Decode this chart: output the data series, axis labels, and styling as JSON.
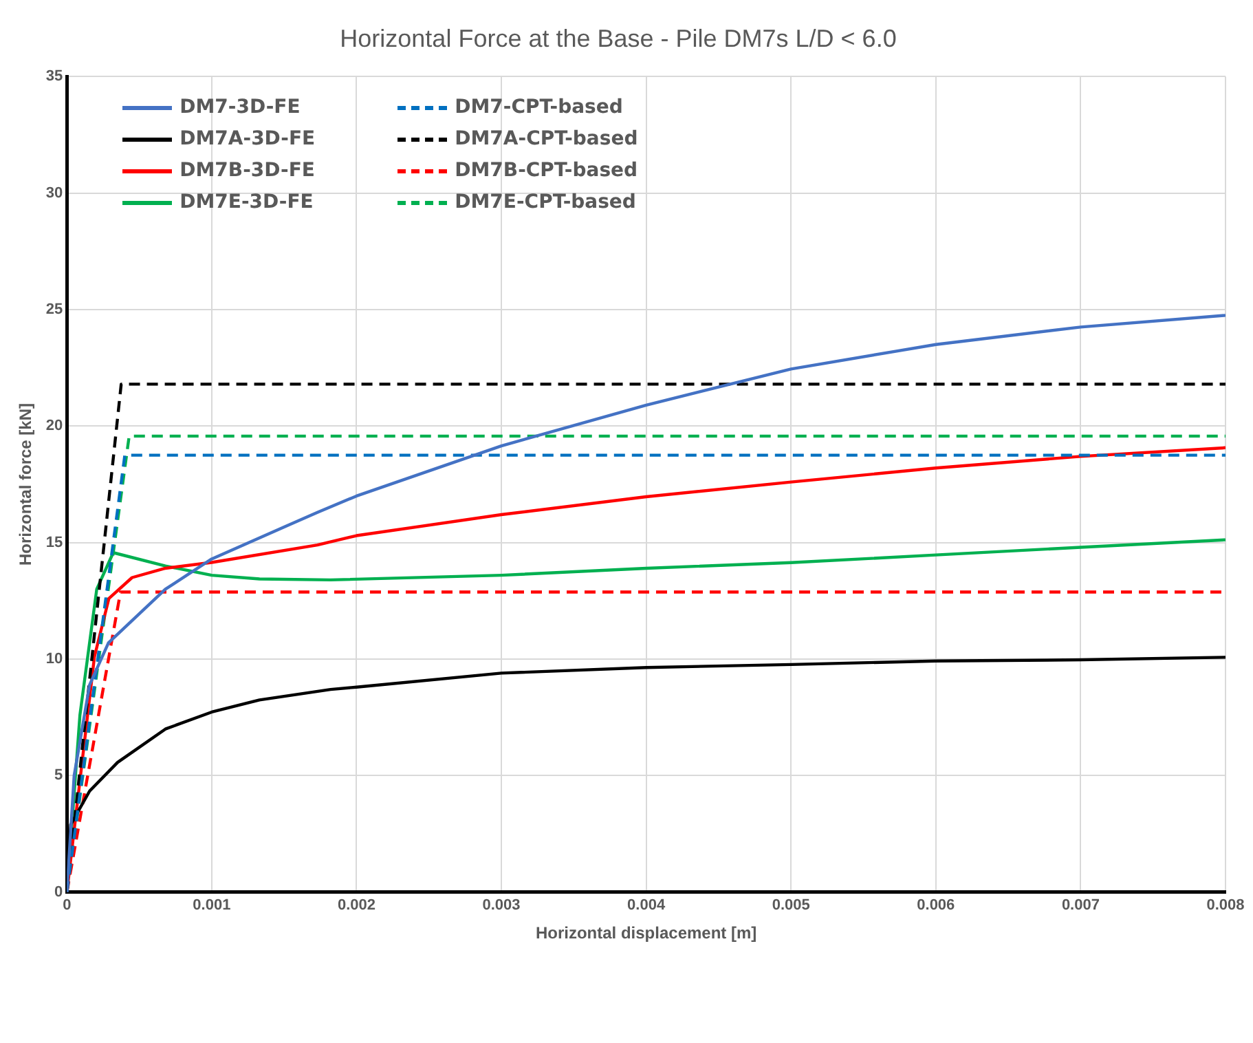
{
  "chart_data": {
    "type": "line",
    "title": "Horizontal Force at the Base - Pile DM7s L/D < 6.0",
    "xlabel": "Horizontal displacement [m]",
    "ylabel": "Horizontal force [kN]",
    "xlim": [
      0,
      0.008
    ],
    "xticks": [
      0,
      0.001,
      0.002,
      0.003,
      0.004,
      0.005,
      0.006,
      0.007,
      0.008
    ],
    "ylim": [
      0,
      35
    ],
    "yticks": [
      0,
      5,
      10,
      15,
      20,
      25,
      30,
      35
    ],
    "grid": true,
    "legend": "top left",
    "marker": "none",
    "series": [
      {
        "name": "DM7-3D-FE",
        "color": "#4472c4",
        "line_style": "solid",
        "x": [
          0,
          5e-05,
          0.000157,
          0.000287,
          0.00068,
          0.001,
          0.00173,
          0.002,
          0.003,
          0.004,
          0.005,
          0.006,
          0.007,
          0.008
        ],
        "values": [
          0,
          5,
          8.9,
          10.7,
          13.0,
          14.3,
          16.3,
          17.0,
          19.15,
          20.9,
          22.45,
          23.5,
          24.25,
          24.75
        ]
      },
      {
        "name": "DM7-CPT-based",
        "color": "#0070c0",
        "line_style": "dashed",
        "x": [
          0,
          0.0004,
          0.008
        ],
        "values": [
          0,
          18.75,
          18.75
        ]
      },
      {
        "name": "DM7A-3D-FE",
        "color": "#000000",
        "line_style": "solid",
        "x": [
          0,
          2.6e-05,
          0.000157,
          0.00035,
          0.00068,
          0.001,
          0.00133,
          0.00182,
          0.002,
          0.003,
          0.004,
          0.005,
          0.006,
          0.007,
          0.008
        ],
        "values": [
          0,
          2.9,
          4.34,
          5.57,
          7.0,
          7.73,
          8.25,
          8.7,
          8.8,
          9.4,
          9.64,
          9.77,
          9.92,
          9.97,
          10.08
        ]
      },
      {
        "name": "DM7A-CPT-based",
        "color": "#000000",
        "line_style": "dashed",
        "x": [
          0,
          0.000375,
          0.008
        ],
        "values": [
          0,
          21.8,
          21.8
        ]
      },
      {
        "name": "DM7B-3D-FE",
        "color": "#ff0000",
        "line_style": "solid",
        "x": [
          0,
          0.00019,
          0.00029,
          0.00045,
          0.00068,
          0.001,
          0.00173,
          0.002,
          0.003,
          0.004,
          0.005,
          0.006,
          0.007,
          0.008
        ],
        "values": [
          0,
          10.1,
          12.6,
          13.5,
          13.9,
          14.15,
          14.9,
          15.3,
          16.2,
          16.97,
          17.6,
          18.2,
          18.7,
          19.07
        ]
      },
      {
        "name": "DM7B-CPT-based",
        "color": "#ff0000",
        "line_style": "dashed",
        "x": [
          0,
          0.00037,
          0.008
        ],
        "values": [
          0,
          12.88,
          12.88
        ]
      },
      {
        "name": "DM7E-3D-FE",
        "color": "#00b050",
        "line_style": "solid",
        "x": [
          0,
          9e-05,
          0.000206,
          0.00032,
          0.00068,
          0.001,
          0.00133,
          0.00182,
          0.003,
          0.004,
          0.005,
          0.006,
          0.007,
          0.008
        ],
        "values": [
          0,
          7.6,
          13.0,
          14.57,
          14.0,
          13.6,
          13.44,
          13.4,
          13.6,
          13.9,
          14.14,
          14.47,
          14.8,
          15.12
        ]
      },
      {
        "name": "DM7E-CPT-based",
        "color": "#00b050",
        "line_style": "dashed",
        "x": [
          0,
          0.00043,
          0.008
        ],
        "values": [
          0,
          19.57,
          19.57
        ]
      }
    ]
  }
}
